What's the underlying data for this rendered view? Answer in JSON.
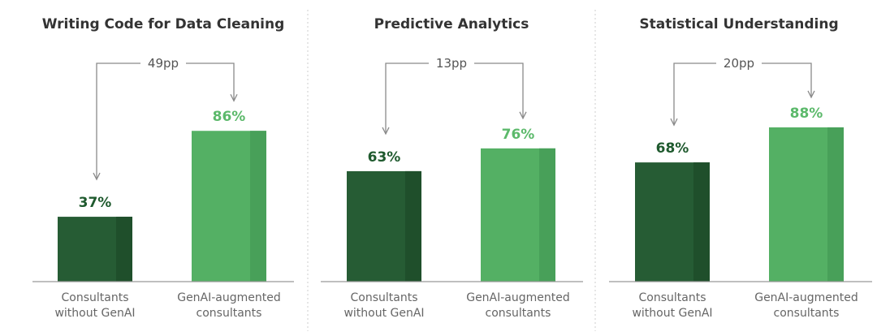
{
  "colors": {
    "without": "#265c34",
    "without_shade": "#1f4f2b",
    "with": "#54b064",
    "with_shade": "#48a059",
    "without_label": "#1f5a2e",
    "with_label": "#5cb96b",
    "connector": "#8a8a8a",
    "baseline": "#999999",
    "divider": "#cccccc"
  },
  "chart_data": [
    {
      "type": "bar",
      "title": "Writing Code for Data Cleaning",
      "categories": [
        "Consultants without GenAI",
        "GenAI-augmented consultants"
      ],
      "category_lines": [
        [
          "Consultants",
          "without GenAI"
        ],
        [
          "GenAI-augmented",
          "consultants"
        ]
      ],
      "values": [
        37,
        86
      ],
      "value_labels": [
        "37%",
        "86%"
      ],
      "difference_label": "49pp",
      "ylim": [
        0,
        100
      ]
    },
    {
      "type": "bar",
      "title": "Predictive Analytics",
      "categories": [
        "Consultants without GenAI",
        "GenAI-augmented consultants"
      ],
      "category_lines": [
        [
          "Consultants",
          "without GenAI"
        ],
        [
          "GenAI-augmented",
          "consultants"
        ]
      ],
      "values": [
        63,
        76
      ],
      "value_labels": [
        "63%",
        "76%"
      ],
      "difference_label": "13pp",
      "ylim": [
        0,
        100
      ]
    },
    {
      "type": "bar",
      "title": "Statistical Understanding",
      "categories": [
        "Consultants without GenAI",
        "GenAI-augmented consultants"
      ],
      "category_lines": [
        [
          "Consultants",
          "without GenAI"
        ],
        [
          "GenAI-augmented",
          "consultants"
        ]
      ],
      "values": [
        68,
        88
      ],
      "value_labels": [
        "68%",
        "88%"
      ],
      "difference_label": "20pp",
      "ylim": [
        0,
        100
      ]
    }
  ]
}
